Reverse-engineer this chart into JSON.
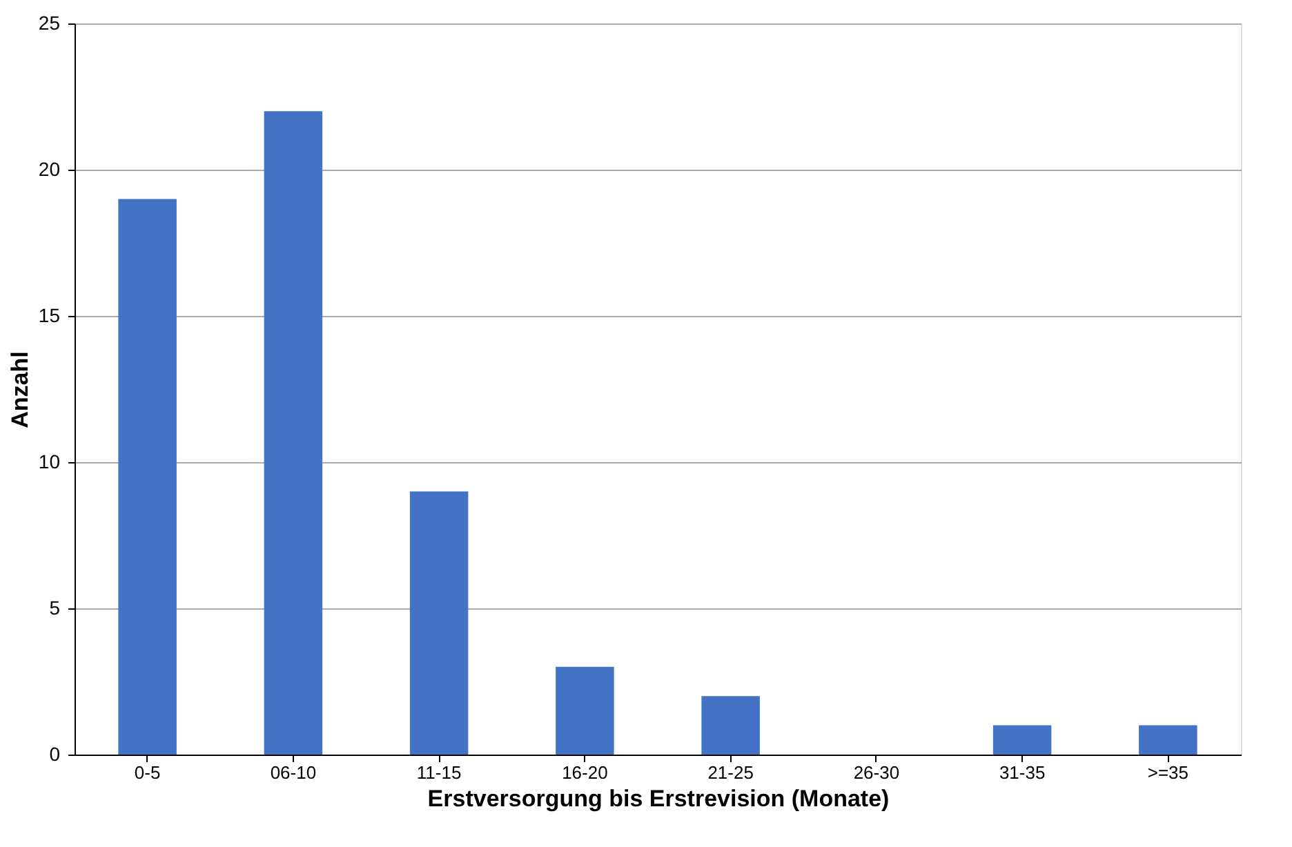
{
  "chart_data": {
    "type": "bar",
    "xlabel": "Erstversorgung bis Erstrevision (Monate)",
    "ylabel": "Anzahl",
    "categories": [
      "0-5",
      "06-10",
      "11-15",
      "16-20",
      "21-25",
      "26-30",
      "31-35",
      ">=35"
    ],
    "values": [
      19,
      22,
      9,
      3,
      2,
      0,
      1,
      1
    ],
    "color": "#4472c4",
    "ylim": [
      0,
      25
    ],
    "yticks": [
      0,
      5,
      10,
      15,
      20,
      25
    ],
    "grid": "y"
  }
}
